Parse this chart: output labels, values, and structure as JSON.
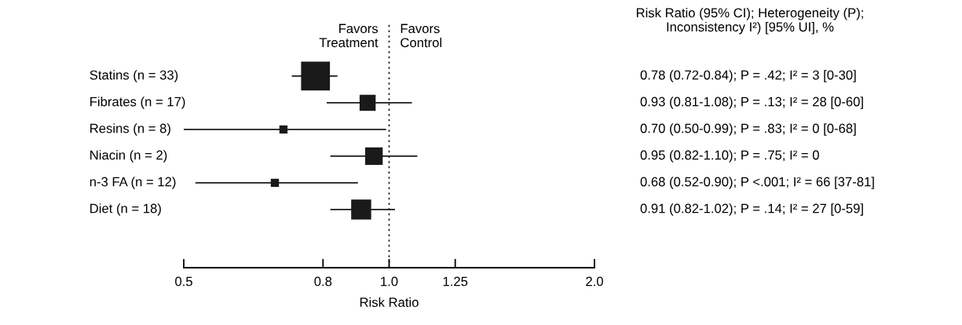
{
  "chart_data": {
    "type": "bubble",
    "orientation": "horizontal",
    "marker": "square",
    "color": "#1a1a1a",
    "categories": [
      "Statins (n = 33)",
      "Fibrates (n = 17)",
      "Resins (n = 8)",
      "Niacin (n = 2)",
      "n-3 FA (n = 12)",
      "Diet (n = 18)"
    ],
    "values": [
      0.78,
      0.93,
      0.7,
      0.95,
      0.68,
      0.91
    ],
    "errors": [
      [
        0.72,
        0.84
      ],
      [
        0.81,
        1.08
      ],
      [
        0.5,
        0.99
      ],
      [
        0.82,
        1.1
      ],
      [
        0.52,
        0.9
      ],
      [
        0.82,
        1.02
      ]
    ],
    "sizes": [
      1,
      0.31,
      0.08,
      0.37,
      0.08,
      0.48
    ],
    "log": "x",
    "xlim": [
      0.5,
      2.0
    ],
    "xticks": [
      {
        "value": 0.5,
        "label": "0.5"
      },
      {
        "value": 0.8,
        "label": "0.8"
      },
      {
        "value": 1.0,
        "label": "1.0"
      },
      {
        "value": 1.25,
        "label": "1.25"
      },
      {
        "value": 2.0,
        "label": "2.0"
      }
    ],
    "xlabel": "Risk Ratio",
    "ref_lines": [
      {
        "axis": "x",
        "value": 1.0,
        "line_style": "dotted",
        "color": "#1a1a1a"
      }
    ],
    "annotations": [
      "Favors\nTreatment",
      "Favors\nControl",
      "Risk Ratio (95% CI); Heterogeneity (P);\nInconsistency I²) [95% UI], %",
      "0.78 (0.72-0.84); P = .42; I² = 3 [0-30]",
      "0.93 (0.81-1.08); P = .13; I² = 28 [0-60]",
      "0.70 (0.50-0.99); P = .83; I² = 0 [0-68]",
      "0.95 (0.82-1.10); P = .75; I² = 0",
      "0.68 (0.52-0.90); P <.001; I² = 66 [37-81]",
      "0.91 (0.82-1.02); P = .14; I² = 27 [0-59]"
    ],
    "grid": false,
    "legend": false
  }
}
